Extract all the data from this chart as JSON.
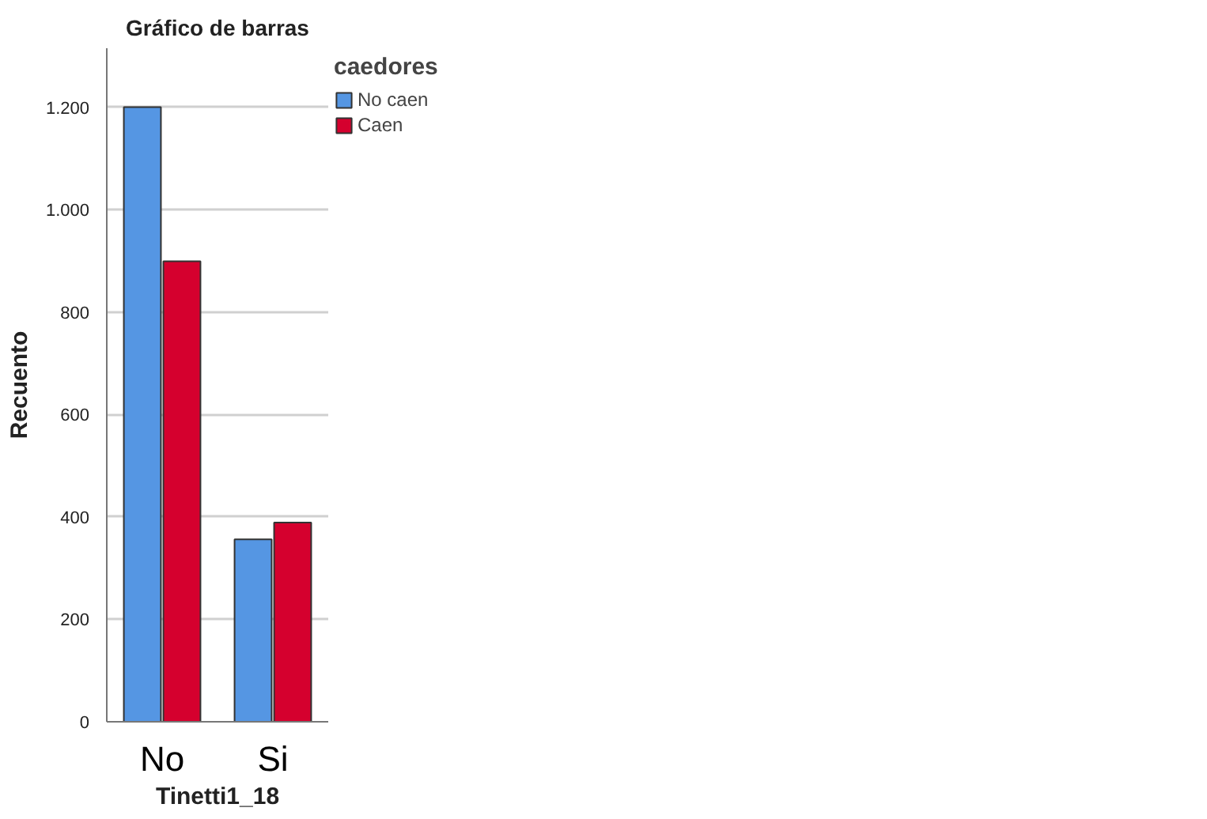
{
  "chart_data": {
    "type": "bar",
    "title": "Gráfico de barras",
    "xlabel": "Tinetti1_18",
    "ylabel": "Recuento",
    "legend_title": "caedores",
    "categories": [
      "No",
      "Si"
    ],
    "series": [
      {
        "name": "No caen",
        "color": "#5596e3",
        "values": [
          1200,
          356
        ]
      },
      {
        "name": "Caen",
        "color": "#d5002e",
        "values": [
          899,
          389
        ]
      }
    ],
    "ylim": [
      0,
      1315
    ],
    "yticks": [
      0,
      200,
      400,
      600,
      800,
      {
        "value": 1000,
        "label": "1.000"
      },
      {
        "value": 1200,
        "label": "1.200"
      }
    ],
    "grid": "y",
    "legend": "top right"
  }
}
